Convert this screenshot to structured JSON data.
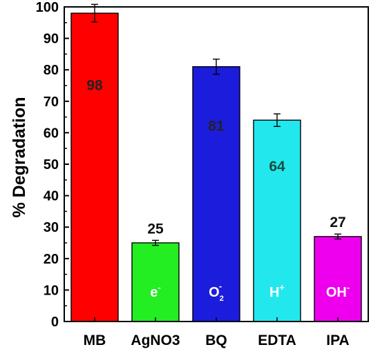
{
  "chart_data": {
    "type": "bar",
    "ylabel": "% Degradation",
    "xlabel": "",
    "title": "",
    "ylim": [
      0,
      100
    ],
    "yticks": [
      0,
      10,
      20,
      30,
      40,
      50,
      60,
      70,
      80,
      90,
      100
    ],
    "categories": [
      "MB",
      "AgNO3",
      "BQ",
      "EDTA",
      "IPA"
    ],
    "values": [
      98,
      25,
      81,
      64,
      27
    ],
    "errors": [
      2.8,
      0.8,
      2.4,
      2.0,
      0.8
    ],
    "data_labels": [
      "98",
      "25",
      "81",
      "64",
      "27"
    ],
    "colors": [
      "#ff0000",
      "#22ee22",
      "#1c1cdd",
      "#22e8ee",
      "#ee00ee"
    ],
    "data_label_colors": [
      "#222222",
      "#111111",
      "#222222",
      "#1b4a40",
      "#111111"
    ],
    "data_label_positions": [
      "inside",
      "above",
      "inside",
      "inside",
      "above"
    ],
    "species_labels": [
      {
        "base": "",
        "sup": "",
        "sub": ""
      },
      {
        "base": "e",
        "sup": "-",
        "sub": ""
      },
      {
        "base": "O",
        "sup": "-",
        "sub": "2"
      },
      {
        "base": "H",
        "sup": "+",
        "sub": ""
      },
      {
        "base": "OH",
        "sup": "-",
        "sub": ""
      }
    ],
    "grid": false,
    "legend": "none"
  }
}
